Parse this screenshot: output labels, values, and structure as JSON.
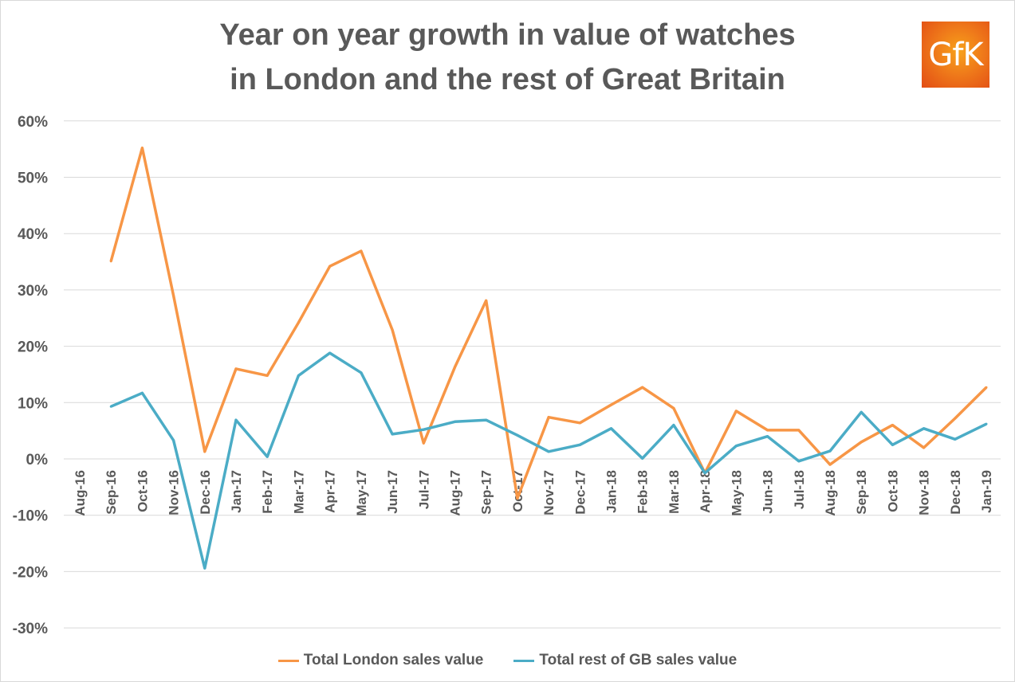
{
  "chart_data": {
    "type": "line",
    "title": "Year on year growth in value of watches in London and the rest of Great Britain",
    "title_lines": [
      "Year on year growth in value of watches",
      "in London and the rest of Great Britain"
    ],
    "xlabel": "",
    "ylabel": "",
    "ylim": [
      -30,
      60
    ],
    "yticks": [
      "-30%",
      "-20%",
      "-10%",
      "0%",
      "10%",
      "20%",
      "30%",
      "40%",
      "50%",
      "60%"
    ],
    "grid": true,
    "legend_position": "bottom",
    "categories": [
      "Aug-16",
      "Sep-16",
      "Oct-16",
      "Nov-16",
      "Dec-16",
      "Jan-17",
      "Feb-17",
      "Mar-17",
      "Apr-17",
      "May-17",
      "Jun-17",
      "Jul-17",
      "Aug-17",
      "Sep-17",
      "Oct-17",
      "Nov-17",
      "Dec-17",
      "Jan-18",
      "Feb-18",
      "Mar-18",
      "Apr-18",
      "May-18",
      "Jun-18",
      "Jul-18",
      "Aug-18",
      "Sep-18",
      "Oct-18",
      "Nov-18",
      "Dec-18",
      "Jan-19"
    ],
    "series": [
      {
        "name": "Total London sales value",
        "color": "#f79646",
        "values": [
          null,
          35.1,
          55.2,
          29,
          1.3,
          16,
          14.8,
          24.2,
          34.2,
          36.9,
          22.9,
          2.8,
          16.3,
          28.1,
          -7,
          7.4,
          6.4,
          9.6,
          12.7,
          9,
          -2.5,
          8.5,
          5.1,
          5.1,
          -1,
          3,
          6,
          2,
          7.2,
          12.7
        ]
      },
      {
        "name": "Total rest of GB sales value",
        "color": "#4bacc6",
        "values": [
          null,
          9.3,
          11.7,
          3.3,
          -19.4,
          6.9,
          0.4,
          14.8,
          18.8,
          15.3,
          4.4,
          5.2,
          6.6,
          6.9,
          4.2,
          1.3,
          2.5,
          5.4,
          0.1,
          6,
          -2.5,
          2.3,
          4,
          -0.4,
          1.4,
          8.3,
          2.5,
          5.4,
          3.5,
          6.2
        ]
      }
    ]
  },
  "logo": {
    "text": "GfK",
    "color": "#ef7a1a"
  }
}
